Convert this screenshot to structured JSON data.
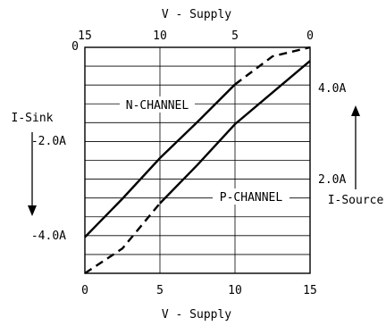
{
  "chart_data": {
    "type": "line",
    "top_axis": {
      "label": "V - Supply",
      "ticks": [
        "15",
        "10",
        "5",
        "0"
      ]
    },
    "bottom_axis": {
      "label": "V - Supply",
      "ticks": [
        "0",
        "5",
        "10",
        "15"
      ],
      "range": [
        0,
        15
      ]
    },
    "top_left_tick": "0",
    "left_axis": {
      "label": "I-Sink",
      "ticks": [
        "-2.0A",
        "-4.0A"
      ],
      "arrow": "down"
    },
    "right_axis": {
      "label": "I-Source",
      "ticks": [
        "4.0A",
        "2.0A"
      ],
      "arrow": "up"
    },
    "grid": true,
    "series": [
      {
        "name": "N-CHANNEL",
        "x": [
          0,
          2.5,
          5,
          7.5,
          10,
          12.5,
          15
        ],
        "y": [
          -4.2,
          -3.35,
          -2.45,
          -1.65,
          -0.82,
          -0.2,
          0
        ]
      },
      {
        "name": "P-CHANNEL",
        "x": [
          0,
          2.5,
          5,
          7.5,
          10,
          12.5,
          15
        ],
        "y": [
          0,
          0.55,
          1.55,
          2.4,
          3.3,
          4.0,
          4.7
        ]
      }
    ]
  }
}
